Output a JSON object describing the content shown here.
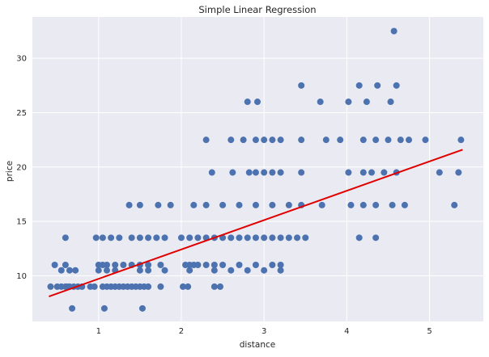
{
  "chart_data": {
    "type": "scatter",
    "title": "Simple Linear Regression",
    "xlabel": "distance",
    "ylabel": "price",
    "xlim": [
      0.2,
      5.65
    ],
    "ylim": [
      5.8,
      33.8
    ],
    "x_ticks": [
      1,
      2,
      3,
      4,
      5
    ],
    "y_ticks": [
      10,
      15,
      20,
      25,
      30
    ],
    "grid": true,
    "colors": {
      "background": "#eaeaf2",
      "grid": "#ffffff",
      "points": "#4c72b0",
      "line": "#e00000",
      "text": "#262626"
    },
    "series": [
      {
        "points": [
          [
            0.42,
            9
          ],
          [
            0.5,
            9
          ],
          [
            0.55,
            9
          ],
          [
            0.6,
            9
          ],
          [
            0.62,
            9
          ],
          [
            0.65,
            9
          ],
          [
            0.7,
            9
          ],
          [
            0.75,
            9
          ],
          [
            0.8,
            9
          ],
          [
            0.9,
            9
          ],
          [
            0.95,
            9
          ],
          [
            1.05,
            9
          ],
          [
            1.1,
            9
          ],
          [
            1.15,
            9
          ],
          [
            1.2,
            9
          ],
          [
            1.25,
            9
          ],
          [
            1.3,
            9
          ],
          [
            1.35,
            9
          ],
          [
            1.4,
            9
          ],
          [
            1.45,
            9
          ],
          [
            1.5,
            9
          ],
          [
            1.55,
            9
          ],
          [
            1.6,
            9
          ],
          [
            1.75,
            9
          ],
          [
            2.02,
            9
          ],
          [
            2.08,
            9
          ],
          [
            2.4,
            9
          ],
          [
            2.47,
            9
          ],
          [
            0.68,
            7
          ],
          [
            1.07,
            7
          ],
          [
            1.53,
            7
          ],
          [
            0.47,
            11
          ],
          [
            0.6,
            11
          ],
          [
            1.0,
            11
          ],
          [
            1.05,
            11
          ],
          [
            1.1,
            11
          ],
          [
            1.2,
            11
          ],
          [
            1.3,
            11
          ],
          [
            1.4,
            11
          ],
          [
            1.5,
            11
          ],
          [
            1.6,
            11
          ],
          [
            1.75,
            11
          ],
          [
            2.05,
            11
          ],
          [
            2.1,
            11
          ],
          [
            2.15,
            11
          ],
          [
            2.2,
            11
          ],
          [
            2.3,
            11
          ],
          [
            2.4,
            11
          ],
          [
            2.5,
            11
          ],
          [
            2.7,
            11
          ],
          [
            2.9,
            11
          ],
          [
            3.1,
            11
          ],
          [
            3.2,
            11
          ],
          [
            0.55,
            10.5
          ],
          [
            0.65,
            10.5
          ],
          [
            0.72,
            10.5
          ],
          [
            1.0,
            10.5
          ],
          [
            1.1,
            10.5
          ],
          [
            1.2,
            10.5
          ],
          [
            1.5,
            10.5
          ],
          [
            1.6,
            10.5
          ],
          [
            1.8,
            10.5
          ],
          [
            2.1,
            10.5
          ],
          [
            2.4,
            10.5
          ],
          [
            2.6,
            10.5
          ],
          [
            2.8,
            10.5
          ],
          [
            3.0,
            10.5
          ],
          [
            3.2,
            10.5
          ],
          [
            0.6,
            13.5
          ],
          [
            0.97,
            13.5
          ],
          [
            1.05,
            13.5
          ],
          [
            1.15,
            13.5
          ],
          [
            1.25,
            13.5
          ],
          [
            1.4,
            13.5
          ],
          [
            1.5,
            13.5
          ],
          [
            1.6,
            13.5
          ],
          [
            1.7,
            13.5
          ],
          [
            1.8,
            13.5
          ],
          [
            2.0,
            13.5
          ],
          [
            2.1,
            13.5
          ],
          [
            2.2,
            13.5
          ],
          [
            2.3,
            13.5
          ],
          [
            2.4,
            13.5
          ],
          [
            2.5,
            13.5
          ],
          [
            2.6,
            13.5
          ],
          [
            2.7,
            13.5
          ],
          [
            2.8,
            13.5
          ],
          [
            2.9,
            13.5
          ],
          [
            3.0,
            13.5
          ],
          [
            3.1,
            13.5
          ],
          [
            3.2,
            13.5
          ],
          [
            3.3,
            13.5
          ],
          [
            3.4,
            13.5
          ],
          [
            3.5,
            13.5
          ],
          [
            4.15,
            13.5
          ],
          [
            4.35,
            13.5
          ],
          [
            1.37,
            16.5
          ],
          [
            1.5,
            16.5
          ],
          [
            1.72,
            16.5
          ],
          [
            1.87,
            16.5
          ],
          [
            2.15,
            16.5
          ],
          [
            2.3,
            16.5
          ],
          [
            2.5,
            16.5
          ],
          [
            2.7,
            16.5
          ],
          [
            2.9,
            16.5
          ],
          [
            3.1,
            16.5
          ],
          [
            3.3,
            16.5
          ],
          [
            3.45,
            16.5
          ],
          [
            3.7,
            16.5
          ],
          [
            4.05,
            16.5
          ],
          [
            4.2,
            16.5
          ],
          [
            4.35,
            16.5
          ],
          [
            4.55,
            16.5
          ],
          [
            4.7,
            16.5
          ],
          [
            5.3,
            16.5
          ],
          [
            2.37,
            19.5
          ],
          [
            2.62,
            19.5
          ],
          [
            2.82,
            19.5
          ],
          [
            2.9,
            19.5
          ],
          [
            3.0,
            19.5
          ],
          [
            3.1,
            19.5
          ],
          [
            3.2,
            19.5
          ],
          [
            3.45,
            19.5
          ],
          [
            4.02,
            19.5
          ],
          [
            4.2,
            19.5
          ],
          [
            4.3,
            19.5
          ],
          [
            4.45,
            19.5
          ],
          [
            4.6,
            19.5
          ],
          [
            5.12,
            19.5
          ],
          [
            5.35,
            19.5
          ],
          [
            2.3,
            22.5
          ],
          [
            2.6,
            22.5
          ],
          [
            2.75,
            22.5
          ],
          [
            2.9,
            22.5
          ],
          [
            3.0,
            22.5
          ],
          [
            3.1,
            22.5
          ],
          [
            3.2,
            22.5
          ],
          [
            3.45,
            22.5
          ],
          [
            3.75,
            22.5
          ],
          [
            3.92,
            22.5
          ],
          [
            4.2,
            22.5
          ],
          [
            4.35,
            22.5
          ],
          [
            4.5,
            22.5
          ],
          [
            4.65,
            22.5
          ],
          [
            4.75,
            22.5
          ],
          [
            4.95,
            22.5
          ],
          [
            5.38,
            22.5
          ],
          [
            2.8,
            26
          ],
          [
            2.92,
            26
          ],
          [
            3.68,
            26
          ],
          [
            4.02,
            26
          ],
          [
            4.24,
            26
          ],
          [
            4.53,
            26
          ],
          [
            3.45,
            27.5
          ],
          [
            4.15,
            27.5
          ],
          [
            4.37,
            27.5
          ],
          [
            4.6,
            27.5
          ],
          [
            4.57,
            32.5
          ]
        ]
      }
    ],
    "regression_line": {
      "x": [
        0.4,
        5.4
      ],
      "y": [
        8.1,
        21.6
      ]
    }
  }
}
